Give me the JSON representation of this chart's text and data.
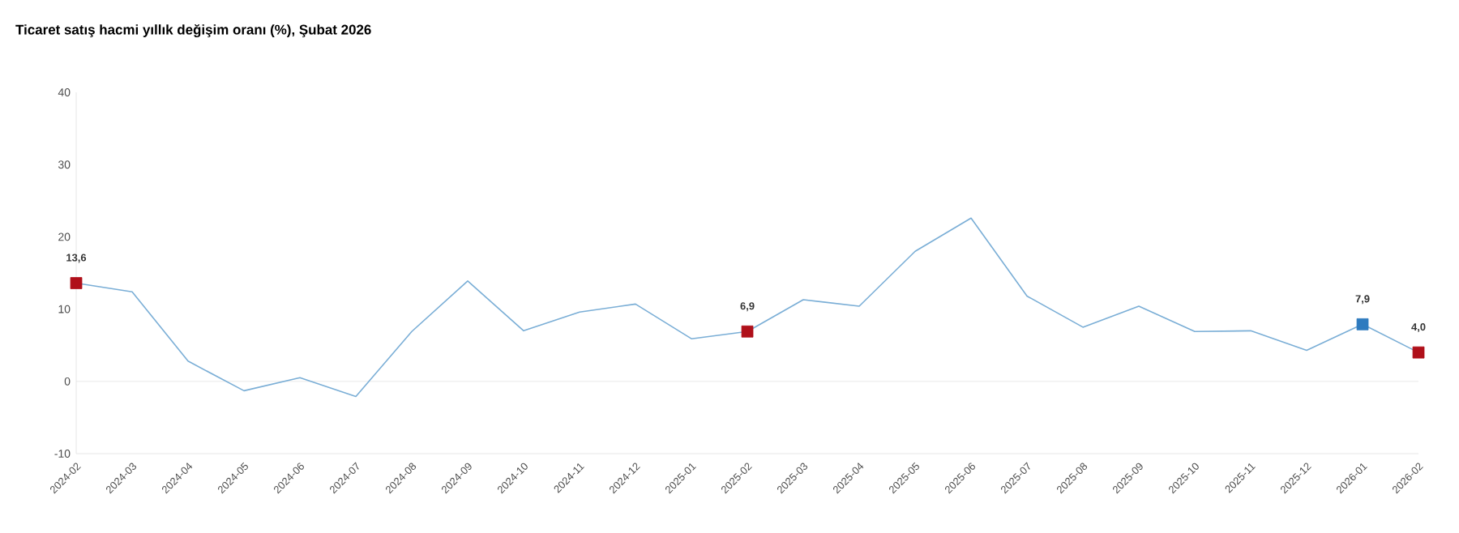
{
  "chart_data": {
    "type": "line",
    "title": "Ticaret satış hacmi yıllık değişim oranı (%), Şubat 2026",
    "categories": [
      "2024-02",
      "2024-03",
      "2024-04",
      "2024-05",
      "2024-06",
      "2024-07",
      "2024-08",
      "2024-09",
      "2024-10",
      "2024-11",
      "2024-12",
      "2025-01",
      "2025-02",
      "2025-03",
      "2025-04",
      "2025-05",
      "2025-06",
      "2025-07",
      "2025-08",
      "2025-09",
      "2025-10",
      "2025-11",
      "2025-12",
      "2026-01",
      "2026-02"
    ],
    "series": [
      {
        "color": "#7aaed6",
        "values": [
          13.6,
          12.4,
          2.8,
          -1.3,
          0.5,
          -2.1,
          6.9,
          13.9,
          7.0,
          9.6,
          10.7,
          5.9,
          6.9,
          11.3,
          10.4,
          18.0,
          22.6,
          11.8,
          7.5,
          10.4,
          6.9,
          7.0,
          4.3,
          7.9,
          4.0
        ],
        "colors": [
          "#b0101a",
          null,
          null,
          null,
          null,
          null,
          null,
          null,
          null,
          null,
          null,
          null,
          "#b0101a",
          null,
          null,
          null,
          null,
          null,
          null,
          null,
          null,
          null,
          null,
          "#2e7bbf",
          "#b0101a"
        ],
        "value_labels": [
          "13,6",
          null,
          null,
          null,
          null,
          null,
          null,
          null,
          null,
          null,
          null,
          null,
          "6,9",
          null,
          null,
          null,
          null,
          null,
          null,
          null,
          null,
          null,
          null,
          "7,9",
          "4,0"
        ]
      }
    ],
    "ylim": [
      -10,
      40
    ],
    "yticks": [
      -10,
      0,
      10,
      20,
      30,
      40
    ],
    "grid": false,
    "line_style": "solid",
    "ref_lines": [
      {
        "axis": "y",
        "value": 0,
        "color": "#e3e3e3"
      }
    ]
  }
}
